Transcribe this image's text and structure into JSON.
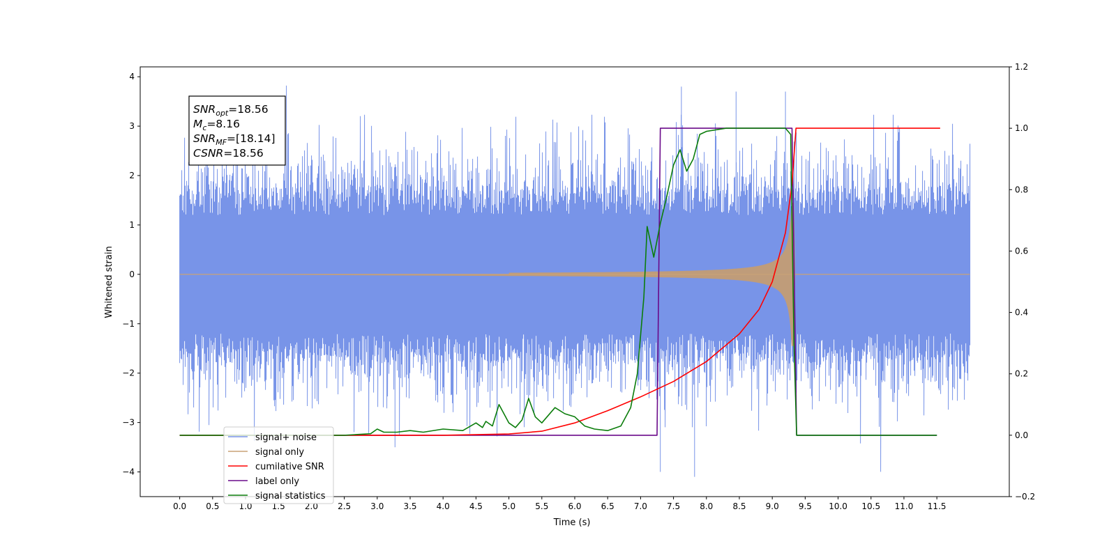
{
  "chart_data": {
    "type": "line",
    "xlabel": "Time (s)",
    "ylabel": "Whitened strain",
    "xlim": [
      -0.6,
      12.6
    ],
    "ylim": [
      -4.5,
      4.2
    ],
    "y2lim": [
      -0.2,
      1.2
    ],
    "x_ticks": [
      "0.0",
      "0.5",
      "1.0",
      "1.5",
      "2.0",
      "2.5",
      "3.0",
      "3.5",
      "4.0",
      "4.5",
      "5.0",
      "5.5",
      "6.0",
      "6.5",
      "7.0",
      "7.5",
      "8.0",
      "8.5",
      "9.0",
      "9.5",
      "10.0",
      "10.5",
      "11.0",
      "11.5"
    ],
    "y_ticks": [
      "4",
      "3",
      "2",
      "1",
      "0",
      "−1",
      "−2",
      "−3",
      "−4"
    ],
    "y2_ticks": [
      "1.2",
      "1.0",
      "0.8",
      "0.6",
      "0.4",
      "0.2",
      "0.0",
      "−0.2"
    ],
    "grid": false,
    "legend_position": "lower-left",
    "annotation": [
      {
        "base": "SNR",
        "sub": "opt",
        "rest": "=18.56"
      },
      {
        "base": "M",
        "sub": "c",
        "rest": "=8.16"
      },
      {
        "base": "SNR",
        "sub": "MF",
        "rest": "=[18.14]"
      },
      {
        "base": "CSNR",
        "sub": "",
        "rest": "=18.56"
      }
    ],
    "series": [
      {
        "name": "signal+ noise",
        "axis": "left",
        "color": "#7894e8",
        "x_range": [
          0.0,
          12.0
        ],
        "envelope": {
          "typical_amplitude": 2.0,
          "peak_max": 3.8,
          "peak_min": -4.1
        },
        "notable_peaks": [
          [
            1.62,
            3.82
          ],
          [
            7.62,
            3.8
          ],
          [
            7.82,
            -4.1
          ],
          [
            7.3,
            -4.0
          ],
          [
            8.45,
            3.7
          ],
          [
            3.27,
            -3.5
          ],
          [
            9.2,
            3.7
          ]
        ]
      },
      {
        "name": "signal only",
        "axis": "left",
        "color": "#c9a277",
        "x_range": [
          0.0,
          12.0
        ],
        "chirp": {
          "start": 5.0,
          "end": 9.33,
          "end_amplitude": 1.45
        }
      },
      {
        "name": "cumilative SNR",
        "axis": "right",
        "color": "#ff0000",
        "points": [
          [
            0.0,
            0.0
          ],
          [
            4.0,
            0.0
          ],
          [
            5.0,
            0.004
          ],
          [
            5.5,
            0.013
          ],
          [
            6.0,
            0.04
          ],
          [
            6.5,
            0.08
          ],
          [
            7.0,
            0.125
          ],
          [
            7.5,
            0.175
          ],
          [
            8.0,
            0.24
          ],
          [
            8.5,
            0.33
          ],
          [
            8.8,
            0.41
          ],
          [
            9.0,
            0.5
          ],
          [
            9.2,
            0.66
          ],
          [
            9.3,
            0.82
          ],
          [
            9.36,
            1.0
          ],
          [
            11.55,
            1.0
          ]
        ]
      },
      {
        "name": "label only",
        "axis": "right",
        "color": "#6a0a8a",
        "points": [
          [
            0.0,
            0.0
          ],
          [
            7.25,
            0.0
          ],
          [
            7.3,
            1.0
          ],
          [
            9.3,
            1.0
          ],
          [
            9.37,
            0.0
          ],
          [
            11.5,
            0.0
          ]
        ]
      },
      {
        "name": "signal statistics",
        "axis": "right",
        "color": "#0b7d0b",
        "points": [
          [
            0.0,
            0.0
          ],
          [
            2.5,
            0.0
          ],
          [
            2.9,
            0.005
          ],
          [
            3.0,
            0.02
          ],
          [
            3.1,
            0.01
          ],
          [
            3.3,
            0.01
          ],
          [
            3.5,
            0.015
          ],
          [
            3.7,
            0.01
          ],
          [
            4.0,
            0.02
          ],
          [
            4.3,
            0.015
          ],
          [
            4.5,
            0.04
          ],
          [
            4.6,
            0.025
          ],
          [
            4.65,
            0.045
          ],
          [
            4.75,
            0.03
          ],
          [
            4.85,
            0.1
          ],
          [
            5.0,
            0.04
          ],
          [
            5.1,
            0.025
          ],
          [
            5.2,
            0.05
          ],
          [
            5.3,
            0.12
          ],
          [
            5.4,
            0.06
          ],
          [
            5.5,
            0.04
          ],
          [
            5.7,
            0.09
          ],
          [
            5.85,
            0.07
          ],
          [
            6.0,
            0.06
          ],
          [
            6.15,
            0.03
          ],
          [
            6.3,
            0.02
          ],
          [
            6.5,
            0.015
          ],
          [
            6.7,
            0.03
          ],
          [
            6.85,
            0.09
          ],
          [
            6.95,
            0.2
          ],
          [
            7.05,
            0.45
          ],
          [
            7.1,
            0.68
          ],
          [
            7.2,
            0.58
          ],
          [
            7.3,
            0.69
          ],
          [
            7.4,
            0.78
          ],
          [
            7.5,
            0.88
          ],
          [
            7.6,
            0.93
          ],
          [
            7.7,
            0.86
          ],
          [
            7.8,
            0.9
          ],
          [
            7.9,
            0.98
          ],
          [
            8.0,
            0.99
          ],
          [
            8.3,
            1.0
          ],
          [
            9.2,
            1.0
          ],
          [
            9.28,
            0.98
          ],
          [
            9.33,
            0.3
          ],
          [
            9.37,
            0.0
          ],
          [
            11.5,
            0.0
          ]
        ]
      }
    ]
  }
}
